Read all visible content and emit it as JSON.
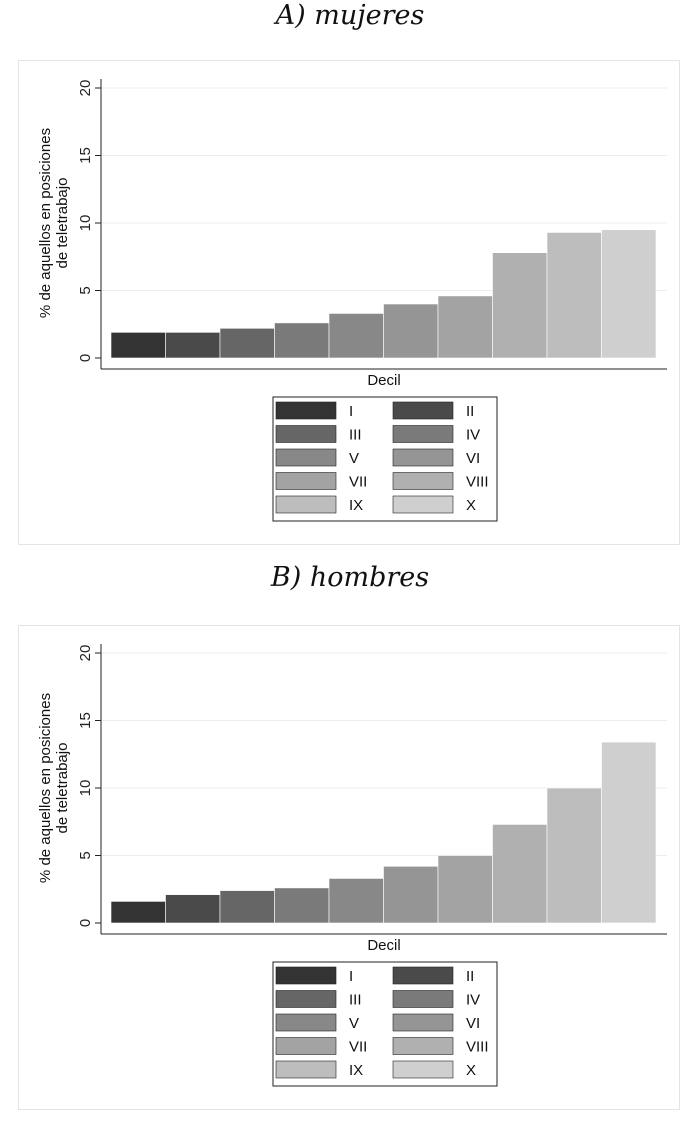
{
  "panels": [
    {
      "title": "A) mujeres"
    },
    {
      "title": "B) hombres"
    }
  ],
  "chart_data": [
    {
      "type": "bar",
      "title": "A) mujeres",
      "xlabel": "Decil",
      "ylabel": "% de aquellos en posiciones de teletrabajo",
      "ylabel_lines": [
        "% de aquellos en posiciones",
        "de teletrabajo"
      ],
      "ylim": [
        0,
        20
      ],
      "yticks": [
        0,
        5,
        10,
        15,
        20
      ],
      "grid": true,
      "legend_position": "bottom",
      "categories": [
        "I",
        "II",
        "III",
        "IV",
        "V",
        "VI",
        "VII",
        "VIII",
        "IX",
        "X"
      ],
      "values": [
        1.9,
        1.9,
        2.2,
        2.6,
        3.3,
        4.0,
        4.6,
        7.8,
        9.3,
        9.5
      ],
      "colors": [
        "#333333",
        "#4a4a4a",
        "#666666",
        "#7a7a7a",
        "#888888",
        "#959595",
        "#a3a3a3",
        "#b0b0b0",
        "#bdbdbd",
        "#cfcfcf"
      ]
    },
    {
      "type": "bar",
      "title": "B) hombres",
      "xlabel": "Decil",
      "ylabel": "% de aquellos en posiciones de teletrabajo",
      "ylabel_lines": [
        "% de aquellos en posiciones",
        "de teletrabajo"
      ],
      "ylim": [
        0,
        20
      ],
      "yticks": [
        0,
        5,
        10,
        15,
        20
      ],
      "grid": true,
      "legend_position": "bottom",
      "categories": [
        "I",
        "II",
        "III",
        "IV",
        "V",
        "VI",
        "VII",
        "VIII",
        "IX",
        "X"
      ],
      "values": [
        1.6,
        2.1,
        2.4,
        2.6,
        3.3,
        4.2,
        5.0,
        7.3,
        10.0,
        13.4
      ],
      "colors": [
        "#333333",
        "#4a4a4a",
        "#666666",
        "#7a7a7a",
        "#888888",
        "#959595",
        "#a3a3a3",
        "#b0b0b0",
        "#bdbdbd",
        "#cfcfcf"
      ]
    }
  ]
}
